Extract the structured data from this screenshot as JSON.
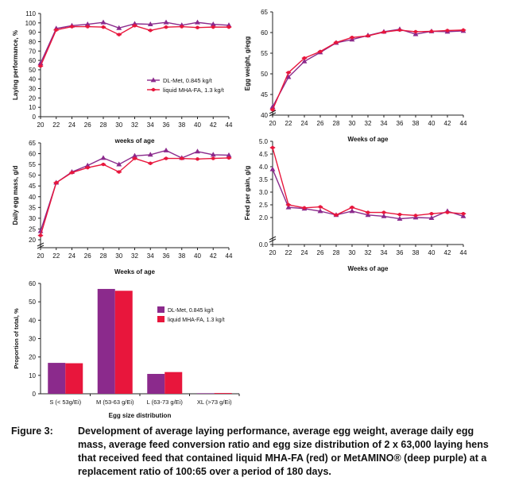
{
  "colors": {
    "dlmet": "#8b2a8c",
    "mha": "#e8163c",
    "axis": "#222222"
  },
  "charts": [
    {
      "type": "line",
      "ylabel": "Laying performance, %",
      "xlabel": "weeks of age",
      "ylim": [
        0,
        110
      ],
      "yticks": [
        0,
        10,
        20,
        30,
        40,
        50,
        60,
        70,
        80,
        90,
        100,
        110
      ],
      "x": [
        20,
        22,
        24,
        26,
        28,
        30,
        32,
        34,
        36,
        38,
        40,
        42,
        44
      ],
      "legend": [
        "DL-Met, 0.845 kg/t",
        "liquid MHA-FA, 1.3 kg/t"
      ],
      "series": [
        {
          "name": "DL-Met, 0.845 kg/t",
          "values": [
            57,
            94,
            97,
            98.5,
            100.5,
            94.5,
            99,
            98.5,
            100.5,
            97.5,
            100.5,
            98.5,
            97.5
          ]
        },
        {
          "name": "liquid MHA-FA, 1.3 kg/t",
          "values": [
            54,
            92.5,
            96,
            96,
            95.5,
            87.5,
            97,
            92,
            95.5,
            96,
            95,
            95.5,
            95.5
          ]
        }
      ]
    },
    {
      "type": "line",
      "ylabel": "Egg weight, g/egg",
      "xlabel": "Weeks of age",
      "ylim": [
        40,
        65
      ],
      "yticks": [
        40,
        45,
        50,
        55,
        60,
        65
      ],
      "x": [
        20,
        22,
        24,
        26,
        28,
        30,
        32,
        34,
        36,
        38,
        40,
        42,
        44
      ],
      "series": [
        {
          "name": "DL-Met, 0.845 kg/t",
          "values": [
            42,
            49.2,
            53,
            55.2,
            57.5,
            58.3,
            59.3,
            60.2,
            60.8,
            59.6,
            60.3,
            60.2,
            60.4
          ]
        },
        {
          "name": "liquid MHA-FA, 1.3 kg/t",
          "values": [
            41.3,
            50.3,
            53.8,
            55.4,
            57.6,
            58.8,
            59.2,
            60.1,
            60.6,
            60.2,
            60.3,
            60.5,
            60.6
          ]
        }
      ]
    },
    {
      "type": "line",
      "ylabel": "Daily egg mass, g/d",
      "xlabel": "Weeks of age",
      "ylim": [
        15,
        65
      ],
      "yticks": [
        20,
        25,
        30,
        35,
        40,
        45,
        50,
        55,
        60,
        65
      ],
      "x": [
        20,
        22,
        24,
        26,
        28,
        30,
        32,
        34,
        36,
        38,
        40,
        42,
        44
      ],
      "series": [
        {
          "name": "DL-Met, 0.845 kg/t",
          "values": [
            24,
            46.5,
            51.5,
            54.5,
            58,
            55,
            59,
            59.5,
            61.5,
            58,
            61,
            59.5,
            59.3
          ]
        },
        {
          "name": "liquid MHA-FA, 1.3 kg/t",
          "values": [
            22,
            46.5,
            51.2,
            53.5,
            55,
            51.5,
            57.8,
            55.5,
            57.8,
            57.8,
            57.5,
            57.8,
            58
          ]
        }
      ]
    },
    {
      "type": "line",
      "ylabel": "Feed per gain, g/g",
      "xlabel": "Weeks of age",
      "ylim": [
        0,
        5
      ],
      "yticks": [
        0.0,
        1.5,
        2.0,
        2.5,
        3.0,
        3.5,
        4.0,
        4.5,
        5.0
      ],
      "ytick_labels": [
        "0.0",
        "2.0",
        "2.5",
        "3.0",
        "3.5",
        "4.0",
        "4.5",
        "5.0"
      ],
      "x": [
        20,
        22,
        24,
        26,
        28,
        30,
        32,
        34,
        36,
        38,
        40,
        42,
        44
      ],
      "series": [
        {
          "name": "DL-Met, 0.845 kg/t",
          "values": [
            3.9,
            2.4,
            2.35,
            2.25,
            2.1,
            2.25,
            2.1,
            2.05,
            1.95,
            2.0,
            1.98,
            2.25,
            2.05
          ]
        },
        {
          "name": "liquid MHA-FA, 1.3 kg/t",
          "values": [
            4.75,
            2.5,
            2.38,
            2.42,
            2.1,
            2.4,
            2.2,
            2.2,
            2.12,
            2.08,
            2.15,
            2.2,
            2.15
          ]
        }
      ]
    }
  ],
  "chart_data": {
    "type": "bar",
    "ylabel": "Proportion of total, %",
    "xlabel": "Egg size distribution",
    "ylim": [
      0,
      60
    ],
    "yticks": [
      0,
      10,
      20,
      30,
      40,
      50,
      60
    ],
    "categories": [
      "S (< 53g/Ei)",
      "M (53-63 g/Ei)",
      "L (63-73 g/Ei)",
      "XL (>73 g/Ei)"
    ],
    "series": [
      {
        "name": "DL-Met, 0.845 kg/t",
        "values": [
          16.8,
          57,
          10.8,
          0.3
        ]
      },
      {
        "name": "liquid MHA-FA, 1.3 kg/t",
        "values": [
          16.6,
          56,
          11.8,
          0.4
        ]
      }
    ]
  },
  "caption": {
    "label": "Figure 3:",
    "text": "Development of average laying performance, average egg weight, average daily egg mass, average feed conversion ratio and egg size distribution of 2 x 63,000 laying hens that received feed that contained liquid MHA-FA (red) or MetAMINO® (deep purple) at a replacement ratio of 100:65 over a period of 180 days."
  }
}
